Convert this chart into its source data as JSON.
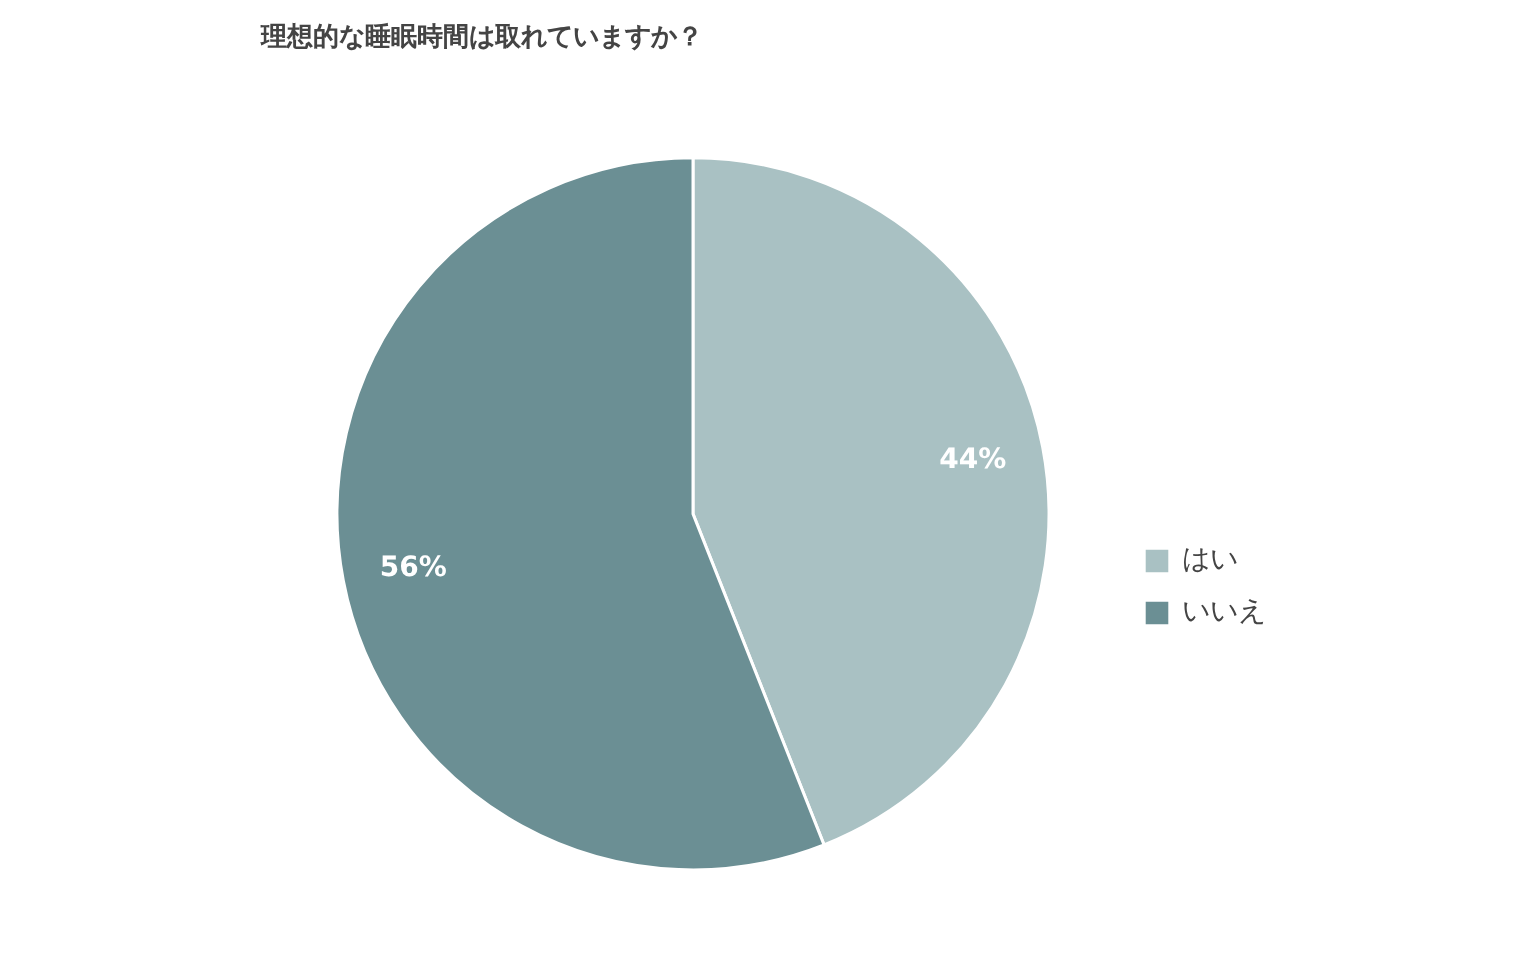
{
  "chart_data": {
    "type": "pie",
    "title": "理想的な睡眠時間は取れていますか？",
    "categories": [
      "はい",
      "いいえ"
    ],
    "values": [
      44,
      56
    ],
    "colors": [
      "#a9c1c3",
      "#6b8f94"
    ],
    "value_labels": [
      "44%",
      "56%"
    ],
    "legend": "right"
  }
}
